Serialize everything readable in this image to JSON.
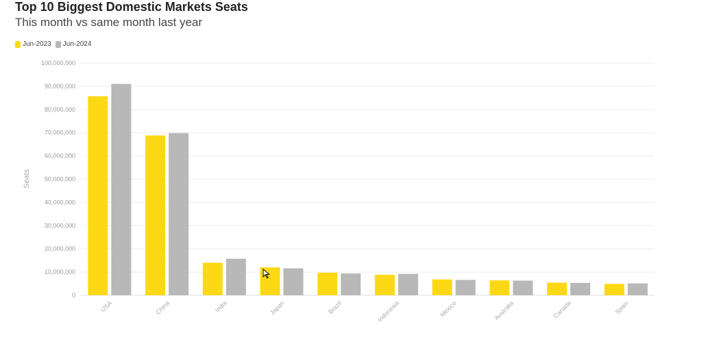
{
  "chart_data": {
    "type": "bar",
    "title": "Top 10 Biggest Domestic Markets Seats",
    "subtitle": "This month vs same month last year",
    "xlabel": "",
    "ylabel": "Seats",
    "ylim": [
      0,
      100000000
    ],
    "yticks": [
      0,
      10000000,
      20000000,
      30000000,
      40000000,
      50000000,
      60000000,
      70000000,
      80000000,
      90000000,
      100000000
    ],
    "ytick_labels": [
      "0",
      "10,000,000",
      "20,000,000",
      "30,000,000",
      "40,000,000",
      "50,000,000",
      "60,000,000",
      "70,000,000",
      "80,000,000",
      "90,000,000",
      "100,000,000"
    ],
    "grid": true,
    "legend_position": "top-left",
    "categories": [
      "USA",
      "China",
      "India",
      "Japan",
      "Brazil",
      "Indonesia",
      "Mexico",
      "Australia",
      "Canada",
      "Spain"
    ],
    "series": [
      {
        "name": "Jun-2023",
        "color": "#FDD915",
        "values": [
          85700000,
          68800000,
          14000000,
          12000000,
          9700000,
          8800000,
          6800000,
          6400000,
          5400000,
          4900000
        ]
      },
      {
        "name": "Jun-2024",
        "color": "#B8B8B8",
        "values": [
          91000000,
          69800000,
          15700000,
          11600000,
          9400000,
          9200000,
          6600000,
          6300000,
          5300000,
          5100000
        ]
      }
    ]
  }
}
